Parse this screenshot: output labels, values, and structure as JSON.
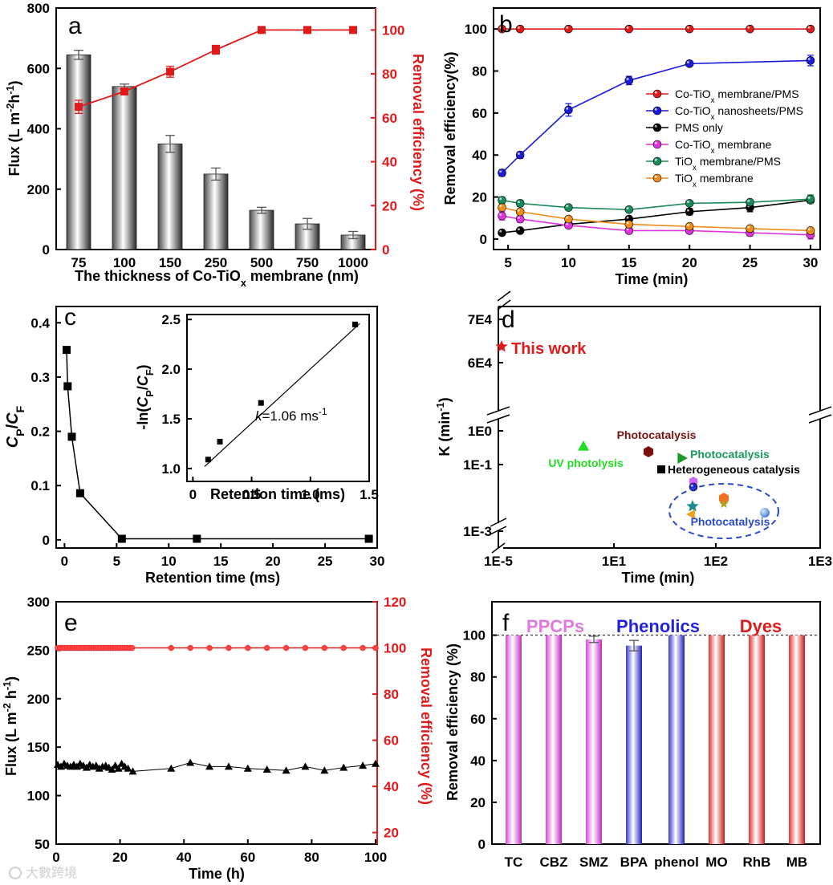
{
  "watermark": "大數跨境",
  "colors": {
    "red": "#e01a1a",
    "blue": "#1a1ad8",
    "black": "#000000",
    "magenta": "#e033e0",
    "green": "#1a8a5a",
    "orange": "#f08c1a",
    "bar_gray": "#9a9a9a",
    "bar_pink": "#e07ae0",
    "bar_blue": "#6a6ae8",
    "bar_red": "#f06a6a",
    "text_pink": "#e07ae0",
    "text_blue": "#2222dd",
    "text_red": "#e01a1a",
    "text_green": "#22dd22",
    "text_green2": "#1a9a5a",
    "text_brown": "#7a1010",
    "ellipse": "#2a4ad0"
  },
  "chart_data": [
    {
      "panel": "a",
      "type": "bar",
      "categories": [
        "75",
        "100",
        "150",
        "250",
        "500",
        "750",
        "1000"
      ],
      "xlabel": "The thickness of Co-TiOx membrane (nm)",
      "ylabel": "Flux (L m-2h-1)",
      "ylabel_right": "Removal efficiency (%)",
      "ylim": [
        0,
        800
      ],
      "ylim_right": [
        0,
        110
      ],
      "yticks": [
        "0",
        "200",
        "400",
        "600",
        "800"
      ],
      "yticks_right": [
        "0",
        "20",
        "40",
        "60",
        "80",
        "100"
      ],
      "series": [
        {
          "name": "Flux",
          "type": "bar",
          "values": [
            645,
            540,
            350,
            250,
            130,
            85,
            48
          ],
          "errors": [
            15,
            8,
            28,
            20,
            10,
            18,
            12
          ]
        },
        {
          "name": "Removal efficiency",
          "type": "line",
          "values": [
            65,
            72,
            81,
            91,
            100,
            100,
            100
          ],
          "errors": [
            3,
            1.5,
            2.5,
            2,
            0,
            0,
            0
          ]
        }
      ]
    },
    {
      "panel": "b",
      "type": "line",
      "x": [
        4.5,
        6,
        10,
        15,
        20,
        25,
        30
      ],
      "xticks": [
        "5",
        "10",
        "15",
        "20",
        "25",
        "30"
      ],
      "xlabel": "Time (min)",
      "ylabel": "Removal efficiency(%)",
      "xlim": [
        3.8,
        30.8
      ],
      "ylim": [
        -5,
        110
      ],
      "yticks": [
        "0",
        "20",
        "40",
        "60",
        "80",
        "100"
      ],
      "series": [
        {
          "name": "Co-TiOx membrane/PMS",
          "values": [
            100,
            100,
            100,
            100,
            100,
            100,
            100
          ]
        },
        {
          "name": "Co-TiOx nanosheets/PMS",
          "values": [
            31.5,
            40,
            61.5,
            75.5,
            83.5,
            null,
            85
          ]
        },
        {
          "name": "PMS only",
          "values": [
            3,
            4,
            7,
            9.5,
            13,
            15,
            18.5
          ]
        },
        {
          "name": "Co-TiOx membrane",
          "values": [
            11,
            9.5,
            6.5,
            4,
            4,
            3,
            2
          ]
        },
        {
          "name": "TiOx membrane/PMS",
          "values": [
            18.5,
            17,
            15,
            14,
            17,
            17.5,
            19
          ]
        },
        {
          "name": "TiOx membrane",
          "values": [
            15,
            13,
            9.5,
            7,
            6,
            5,
            4
          ]
        }
      ]
    },
    {
      "panel": "c",
      "type": "line",
      "x": [
        0.2,
        0.3,
        0.7,
        1.5,
        5.5,
        12.7,
        29.2
      ],
      "values": [
        0.35,
        0.283,
        0.19,
        0.086,
        0.002,
        0.002,
        0.002
      ],
      "xlabel": "Retention time (ms)",
      "ylabel": "CP/CF",
      "xlim": [
        -0.8,
        30
      ],
      "ylim": [
        -0.015,
        0.43
      ],
      "xticks": [
        "0",
        "5",
        "10",
        "15",
        "20",
        "25",
        "30"
      ],
      "yticks": [
        "0",
        "0.1",
        "0.2",
        "0.3",
        "0.4"
      ],
      "inset": {
        "type": "scatter",
        "x": [
          0.13,
          0.23,
          0.58,
          1.38
        ],
        "values": [
          1.09,
          1.27,
          1.66,
          2.45
        ],
        "xlabel": "Retention time (ms)",
        "ylabel": "-ln(CP/CF)",
        "annotation": "k=1.06 ms-1",
        "xlim": [
          -0.05,
          1.5
        ],
        "ylim": [
          0.87,
          2.55
        ],
        "xticks": [
          "0",
          "0.5",
          "1.0",
          "1.5"
        ],
        "yticks": [
          "1.0",
          "1.5",
          "2.0",
          "2.5"
        ]
      }
    },
    {
      "panel": "d",
      "type": "scatter",
      "xlabel": "Time (min)",
      "ylabel": "K (min-1)",
      "xticks": [
        "1E-5",
        "1E1",
        "1E2",
        "1E3"
      ],
      "yticks": [
        "1E-3",
        "1E-1",
        "1E0",
        "6E4",
        "7E4"
      ],
      "labels": [
        "This work",
        "Photocatalysis",
        "UV photolysis",
        "Photocatalysis",
        "Heterogeneous catalysis",
        "Photocatalysis"
      ]
    },
    {
      "panel": "e",
      "type": "line",
      "xlabel": "Time (h)",
      "ylabel": "Flux (L m-2 h-1)",
      "ylabel_right": "Removal efficiency (%)",
      "xlim": [
        0,
        100
      ],
      "ylim": [
        50,
        300
      ],
      "ylim_right": [
        15,
        120
      ],
      "xticks": [
        "0",
        "20",
        "40",
        "60",
        "80",
        "100"
      ],
      "yticks": [
        "50",
        "100",
        "150",
        "200",
        "250",
        "300"
      ],
      "yticks_right": [
        "20",
        "40",
        "60",
        "80",
        "100",
        "120"
      ],
      "series": [
        {
          "name": "Flux",
          "x": [
            0.5,
            1.5,
            2.5,
            3.5,
            4.5,
            5.5,
            6.5,
            7.5,
            8.5,
            9.5,
            10.5,
            11.5,
            12.5,
            13.5,
            14.5,
            15.5,
            16.5,
            17.5,
            18.5,
            19.5,
            20.5,
            21.5,
            22.5,
            24,
            36,
            42,
            48,
            54,
            60,
            66,
            72,
            78,
            84,
            90,
            96,
            100
          ],
          "values": [
            132,
            130,
            133,
            131,
            130,
            132,
            130,
            133,
            131,
            129,
            132,
            130,
            131,
            128,
            130,
            131,
            129,
            127,
            131,
            128,
            133,
            130,
            128,
            125,
            128,
            134,
            130,
            130,
            128,
            127,
            126,
            130,
            126,
            129,
            131,
            133
          ]
        },
        {
          "name": "Removal efficiency",
          "x_dense_from": 0,
          "x_dense_to": 24,
          "x": [
            36,
            42,
            48,
            54,
            60,
            66,
            72,
            78,
            84,
            90,
            96,
            100
          ],
          "value": 100
        }
      ]
    },
    {
      "panel": "f",
      "type": "bar",
      "categories": [
        "TC",
        "CBZ",
        "SMZ",
        "BPA",
        "phenol",
        "MO",
        "RhB",
        "MB"
      ],
      "values": [
        100,
        100,
        98,
        95,
        100,
        100,
        100,
        100
      ],
      "errors": [
        0,
        0,
        1.5,
        2.5,
        0,
        0,
        0,
        0
      ],
      "groups": [
        "PPCPs",
        "Phenolics",
        "Dyes"
      ],
      "ylabel": "Removal efficiency (%)",
      "ylim": [
        0,
        116
      ],
      "yticks": [
        "0",
        "20",
        "40",
        "60",
        "80",
        "100"
      ]
    }
  ]
}
